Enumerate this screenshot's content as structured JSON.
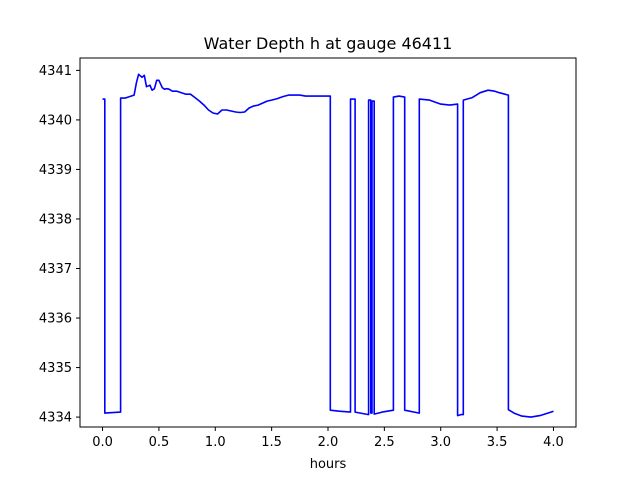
{
  "chart_data": {
    "type": "line",
    "title": "Water Depth h at gauge 46411",
    "xlabel": "hours",
    "ylabel": "",
    "xlim": [
      -0.2,
      4.2
    ],
    "ylim": [
      4333.8,
      4341.25
    ],
    "x_ticks": [
      0.0,
      0.5,
      1.0,
      1.5,
      2.0,
      2.5,
      3.0,
      3.5,
      4.0
    ],
    "x_tick_labels": [
      "0.0",
      "0.5",
      "1.0",
      "1.5",
      "2.0",
      "2.5",
      "3.0",
      "3.5",
      "4.0"
    ],
    "y_ticks": [
      4334,
      4335,
      4336,
      4337,
      4338,
      4339,
      4340,
      4341
    ],
    "y_tick_labels": [
      "4334",
      "4335",
      "4336",
      "4337",
      "4338",
      "4339",
      "4340",
      "4341"
    ],
    "grid": false,
    "series": [
      {
        "color": "#0000ff",
        "x": [
          0.0,
          0.02,
          0.02,
          0.16,
          0.16,
          0.2,
          0.28,
          0.3,
          0.32,
          0.35,
          0.37,
          0.39,
          0.42,
          0.44,
          0.46,
          0.48,
          0.5,
          0.53,
          0.55,
          0.57,
          0.59,
          0.62,
          0.66,
          0.7,
          0.74,
          0.78,
          0.82,
          0.86,
          0.9,
          0.94,
          0.98,
          1.02,
          1.06,
          1.1,
          1.14,
          1.18,
          1.22,
          1.26,
          1.3,
          1.34,
          1.38,
          1.42,
          1.46,
          1.5,
          1.55,
          1.6,
          1.65,
          1.7,
          1.75,
          1.8,
          1.85,
          1.9,
          1.95,
          2.0,
          2.02,
          2.02,
          2.1,
          2.2,
          2.2,
          2.24,
          2.24,
          2.36,
          2.36,
          2.38,
          2.38,
          2.39,
          2.39,
          2.41,
          2.41,
          2.48,
          2.58,
          2.58,
          2.63,
          2.68,
          2.68,
          2.81,
          2.81,
          2.9,
          3.0,
          3.08,
          3.15,
          3.15,
          3.18,
          3.2,
          3.2,
          3.28,
          3.35,
          3.42,
          3.48,
          3.52,
          3.6,
          3.6,
          3.65,
          3.72,
          3.8,
          3.88,
          3.95,
          4.0
        ],
        "y": [
          4340.42,
          4340.42,
          4334.08,
          4334.1,
          4340.44,
          4340.44,
          4340.5,
          4340.75,
          4340.92,
          4340.86,
          4340.9,
          4340.67,
          4340.7,
          4340.6,
          4340.63,
          4340.8,
          4340.8,
          4340.65,
          4340.62,
          4340.63,
          4340.62,
          4340.58,
          4340.58,
          4340.55,
          4340.52,
          4340.52,
          4340.45,
          4340.38,
          4340.3,
          4340.2,
          4340.14,
          4340.12,
          4340.2,
          4340.2,
          4340.18,
          4340.16,
          4340.15,
          4340.16,
          4340.24,
          4340.28,
          4340.3,
          4340.34,
          4340.38,
          4340.4,
          4340.43,
          4340.47,
          4340.5,
          4340.5,
          4340.5,
          4340.48,
          4340.48,
          4340.48,
          4340.48,
          4340.48,
          4340.48,
          4334.14,
          4334.12,
          4334.1,
          4340.42,
          4340.42,
          4334.1,
          4334.05,
          4340.4,
          4340.4,
          4334.08,
          4334.08,
          4340.38,
          4340.38,
          4334.06,
          4334.1,
          4334.14,
          4340.46,
          4340.48,
          4340.46,
          4334.14,
          4334.08,
          4340.42,
          4340.4,
          4340.32,
          4340.3,
          4340.32,
          4334.03,
          4334.05,
          4334.05,
          4340.4,
          4340.45,
          4340.55,
          4340.6,
          4340.58,
          4340.55,
          4340.5,
          4334.15,
          4334.08,
          4334.02,
          4334.0,
          4334.03,
          4334.08,
          4334.12
        ]
      }
    ]
  }
}
